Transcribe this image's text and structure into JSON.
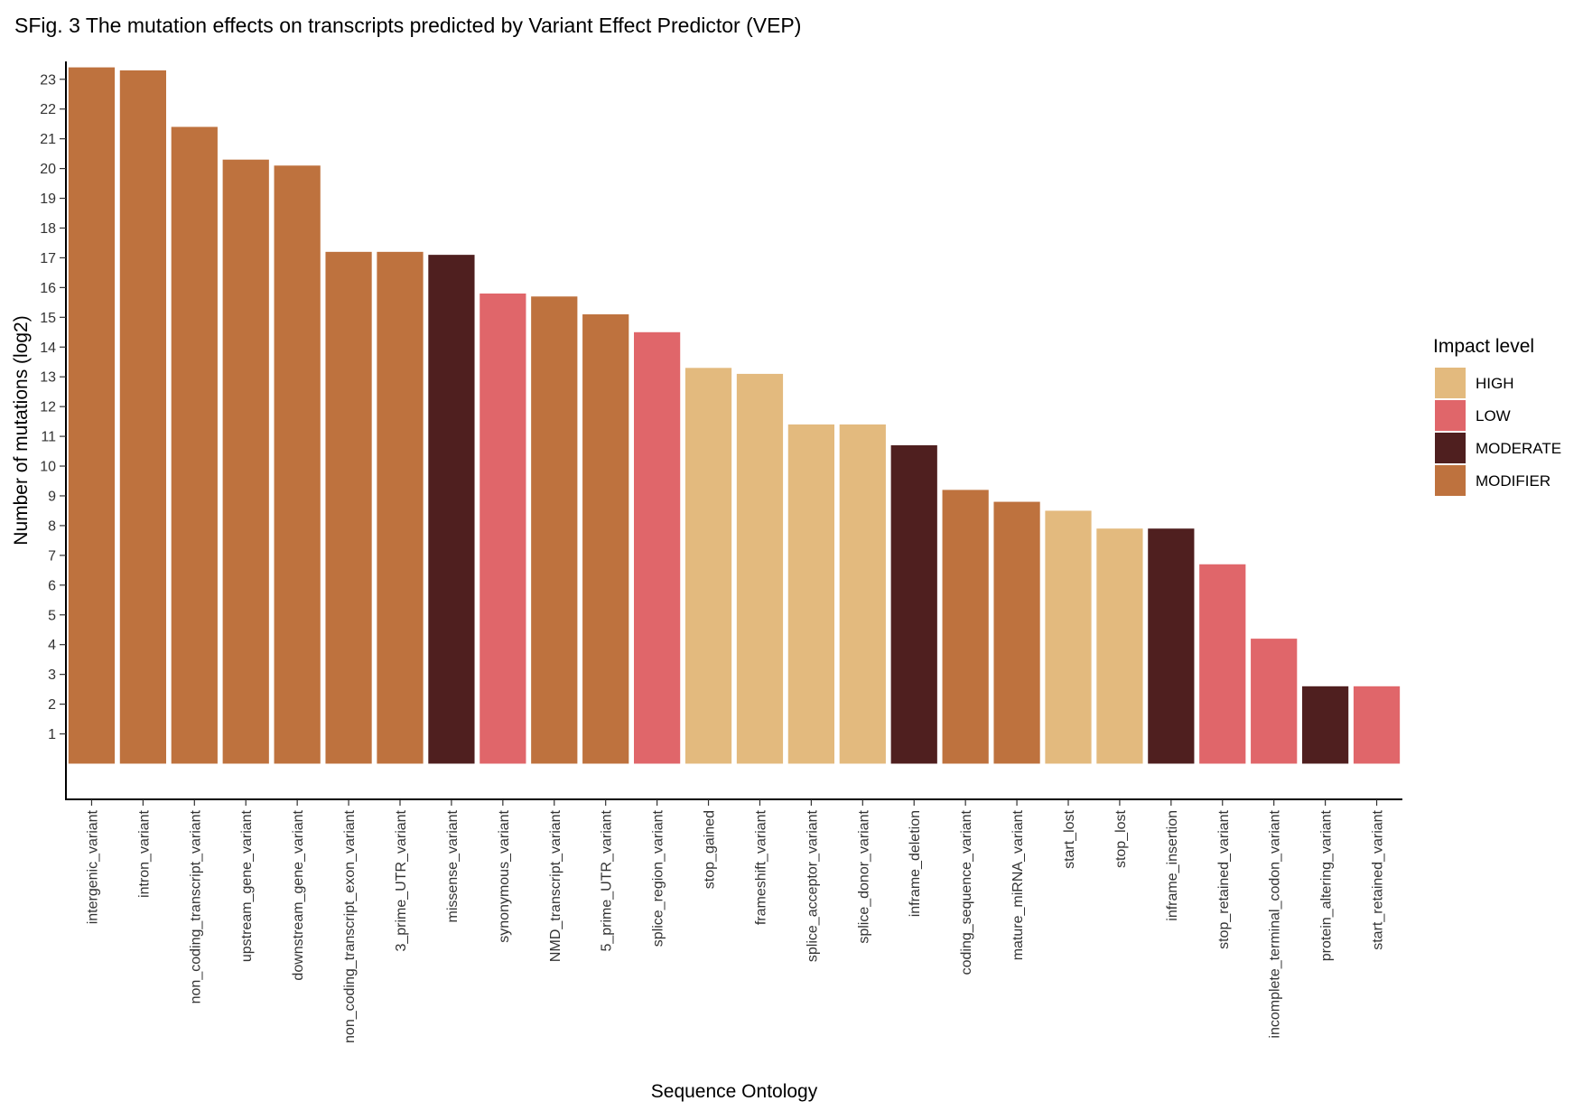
{
  "chart_data": {
    "type": "bar",
    "title": "SFig. 3 The mutation effects on transcripts predicted by Variant Effect Predictor (VEP)",
    "xlabel": "Sequence Ontology",
    "ylabel": "Number of mutations (log2)",
    "ylim": [
      -1.2,
      23.6
    ],
    "yticks": [
      1,
      2,
      3,
      4,
      5,
      6,
      7,
      8,
      9,
      10,
      11,
      12,
      13,
      14,
      15,
      16,
      17,
      18,
      19,
      20,
      21,
      22,
      23
    ],
    "grid": false,
    "legend": {
      "title": "Impact level",
      "placement": "right",
      "entries": [
        {
          "label": "HIGH",
          "color": "#E3BA7E"
        },
        {
          "label": "LOW",
          "color": "#E0666A"
        },
        {
          "label": "MODERATE",
          "color": "#4F1F1F"
        },
        {
          "label": "MODIFIER",
          "color": "#BE723E"
        }
      ]
    },
    "categories": [
      "intergenic_variant",
      "intron_variant",
      "non_coding_transcript_variant",
      "upstream_gene_variant",
      "downstream_gene_variant",
      "non_coding_transcript_exon_variant",
      "3_prime_UTR_variant",
      "missense_variant",
      "synonymous_variant",
      "NMD_transcript_variant",
      "5_prime_UTR_variant",
      "splice_region_variant",
      "stop_gained",
      "frameshift_variant",
      "splice_acceptor_variant",
      "splice_donor_variant",
      "inframe_deletion",
      "coding_sequence_variant",
      "mature_miRNA_variant",
      "start_lost",
      "stop_lost",
      "inframe_insertion",
      "stop_retained_variant",
      "incomplete_terminal_codon_variant",
      "protein_altering_variant",
      "start_retained_variant"
    ],
    "values": [
      23.4,
      23.3,
      21.4,
      20.3,
      20.1,
      17.2,
      17.2,
      17.1,
      15.8,
      15.7,
      15.1,
      14.5,
      13.3,
      13.1,
      11.4,
      11.4,
      10.7,
      9.2,
      8.8,
      8.5,
      7.9,
      7.9,
      6.7,
      4.2,
      2.6,
      2.6
    ],
    "impact": [
      "MODIFIER",
      "MODIFIER",
      "MODIFIER",
      "MODIFIER",
      "MODIFIER",
      "MODIFIER",
      "MODIFIER",
      "MODERATE",
      "LOW",
      "MODIFIER",
      "MODIFIER",
      "LOW",
      "HIGH",
      "HIGH",
      "HIGH",
      "HIGH",
      "MODERATE",
      "MODIFIER",
      "MODIFIER",
      "HIGH",
      "HIGH",
      "MODERATE",
      "LOW",
      "LOW",
      "MODERATE",
      "LOW"
    ]
  }
}
